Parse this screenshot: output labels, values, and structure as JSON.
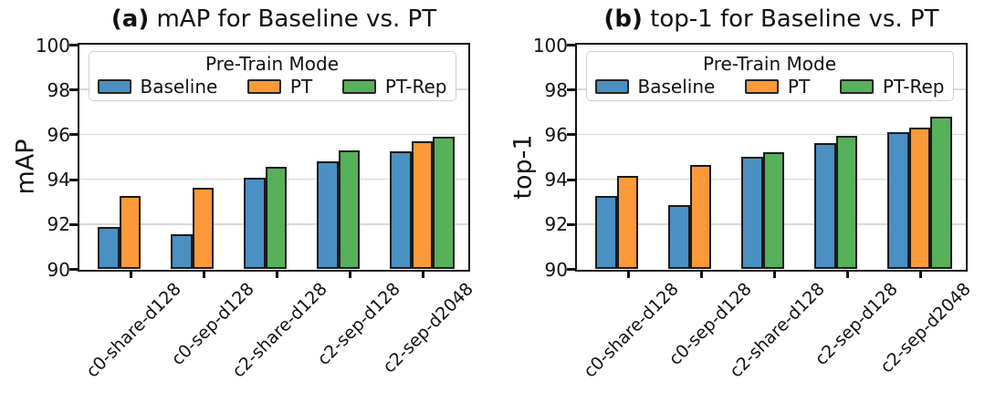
{
  "chart_data": [
    {
      "type": "bar",
      "title_prefix": "(a)",
      "title_rest": " mAP for Baseline vs. PT",
      "ylabel": "mAP",
      "ylim": [
        90,
        100
      ],
      "yticks": [
        90,
        92,
        94,
        96,
        98,
        100
      ],
      "grid": true,
      "bar_edge_color": "#1a1a1a",
      "legend": {
        "title": "Pre-Train Mode",
        "position": "upper center",
        "entries": [
          {
            "label": "Baseline",
            "color": "#4a90c2"
          },
          {
            "label": "PT",
            "color": "#fc9939"
          },
          {
            "label": "PT-Rep",
            "color": "#57b05a"
          }
        ]
      },
      "categories": [
        "c0-share-d128",
        "c0-sep-d128",
        "c2-share-d128",
        "c2-sep-d128",
        "c2-sep-d2048"
      ],
      "series": [
        {
          "name": "Baseline",
          "color": "#4a90c2",
          "values": [
            91.85,
            91.55,
            94.05,
            94.8,
            95.25
          ]
        },
        {
          "name": "PT",
          "color": "#fc9939",
          "values": [
            93.25,
            93.6,
            null,
            null,
            95.7
          ]
        },
        {
          "name": "PT-Rep",
          "color": "#57b05a",
          "values": [
            null,
            null,
            94.55,
            95.3,
            95.9
          ]
        }
      ]
    },
    {
      "type": "bar",
      "title_prefix": "(b)",
      "title_rest": " top-1 for Baseline vs. PT",
      "ylabel": "top-1",
      "ylim": [
        90,
        100
      ],
      "yticks": [
        90,
        92,
        94,
        96,
        98,
        100
      ],
      "grid": true,
      "bar_edge_color": "#1a1a1a",
      "legend": {
        "title": "Pre-Train Mode",
        "position": "upper center",
        "entries": [
          {
            "label": "Baseline",
            "color": "#4a90c2"
          },
          {
            "label": "PT",
            "color": "#fc9939"
          },
          {
            "label": "PT-Rep",
            "color": "#57b05a"
          }
        ]
      },
      "categories": [
        "c0-share-d128",
        "c0-sep-d128",
        "c2-share-d128",
        "c2-sep-d128",
        "c2-sep-d2048"
      ],
      "series": [
        {
          "name": "Baseline",
          "color": "#4a90c2",
          "values": [
            93.25,
            92.85,
            95.0,
            95.6,
            96.1
          ]
        },
        {
          "name": "PT",
          "color": "#fc9939",
          "values": [
            94.15,
            94.65,
            null,
            null,
            96.3
          ]
        },
        {
          "name": "PT-Rep",
          "color": "#57b05a",
          "values": [
            null,
            null,
            95.2,
            95.95,
            96.8
          ]
        }
      ]
    }
  ]
}
